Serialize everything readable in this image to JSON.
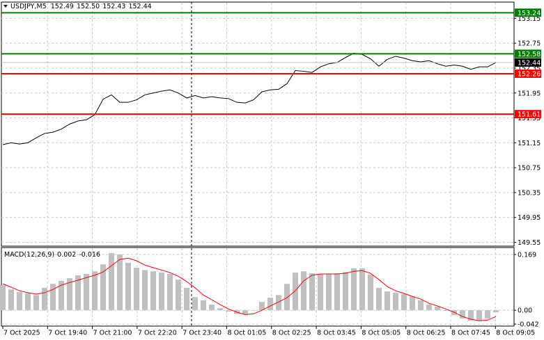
{
  "chart_data": [
    {
      "type": "line",
      "title": "USDJPY,M5",
      "ohlc": [
        "152.49",
        "152.50",
        "152.43",
        "152.44"
      ],
      "series": [
        {
          "color": "#000000",
          "values": [
            151.12,
            151.15,
            151.13,
            151.15,
            151.23,
            151.3,
            151.32,
            151.37,
            151.45,
            151.5,
            151.52,
            151.6,
            151.85,
            151.92,
            151.8,
            151.8,
            151.84,
            151.92,
            151.95,
            151.98,
            152.0,
            151.95,
            151.87,
            151.91,
            151.87,
            151.89,
            151.87,
            151.86,
            151.8,
            151.79,
            151.84,
            151.97,
            152.0,
            152.01,
            152.1,
            152.31,
            152.3,
            152.28,
            152.37,
            152.42,
            152.44,
            152.52,
            152.59,
            152.57,
            152.5,
            152.38,
            152.49,
            152.54,
            152.51,
            152.47,
            152.45,
            152.47,
            152.42,
            152.38,
            152.4,
            152.38,
            152.33,
            152.37,
            152.37,
            152.44
          ]
        }
      ],
      "ylim": [
        149.5,
        153.4
      ],
      "yticks": [
        153.15,
        152.75,
        152.35,
        151.95,
        151.55,
        151.15,
        150.75,
        150.35,
        149.95,
        149.55
      ],
      "grid": true,
      "levels": [
        {
          "value": 153.24,
          "color": "#008000"
        },
        {
          "value": 152.58,
          "color": "#008000"
        },
        {
          "value": 152.26,
          "color": "#ff0000"
        },
        {
          "value": 151.61,
          "color": "#ff0000"
        }
      ],
      "last_price": 152.44,
      "time_labels": [
        "7 Oct 2025",
        "7 Oct 19:40",
        "7 Oct 21:00",
        "7 Oct 22:20",
        "7 Oct 23:40",
        "8 Oct 01:05",
        "8 Oct 02:25",
        "8 Oct 03:45",
        "8 Oct 05:05",
        "8 Oct 06:25",
        "8 Oct 07:45",
        "8 Oct 09:05"
      ]
    },
    {
      "type": "macd",
      "title": "MACD(12,26,9)",
      "readings": [
        0.002,
        -0.016
      ],
      "series": [
        {
          "color": "#c0c0c0",
          "values": [
            0.076,
            0.063,
            0.055,
            0.051,
            0.046,
            0.068,
            0.08,
            0.089,
            0.097,
            0.106,
            0.11,
            0.118,
            0.139,
            0.173,
            0.169,
            0.144,
            0.129,
            0.122,
            0.118,
            0.114,
            0.11,
            0.093,
            0.068,
            0.04,
            0.03,
            0.017,
            0.006,
            -0.004,
            -0.011,
            -0.013,
            0.0,
            0.025,
            0.038,
            0.046,
            0.08,
            0.114,
            0.118,
            0.112,
            0.11,
            0.11,
            0.112,
            0.116,
            0.127,
            0.127,
            0.108,
            0.068,
            0.057,
            0.053,
            0.049,
            0.042,
            0.03,
            0.017,
            0.011,
            -0.002,
            -0.015,
            -0.025,
            -0.032,
            -0.032,
            -0.025,
            -0.006
          ]
        },
        {
          "color": "#ff0000",
          "values": [
            0.08,
            0.07,
            0.059,
            0.053,
            0.049,
            0.053,
            0.063,
            0.076,
            0.084,
            0.091,
            0.099,
            0.106,
            0.116,
            0.135,
            0.154,
            0.158,
            0.15,
            0.137,
            0.129,
            0.122,
            0.114,
            0.103,
            0.087,
            0.068,
            0.046,
            0.032,
            0.017,
            0.004,
            -0.006,
            -0.013,
            -0.011,
            0.0,
            0.013,
            0.025,
            0.038,
            0.059,
            0.089,
            0.106,
            0.11,
            0.11,
            0.11,
            0.112,
            0.118,
            0.12,
            0.112,
            0.093,
            0.072,
            0.059,
            0.051,
            0.042,
            0.034,
            0.021,
            0.013,
            0.004,
            -0.006,
            -0.019,
            -0.027,
            -0.032,
            -0.03,
            -0.019
          ]
        }
      ],
      "ylim": [
        -0.046,
        0.188
      ],
      "yticks": [
        0.169,
        {
          "value": 0,
          "label": "0.00"
        },
        -0.042
      ],
      "grid": true
    }
  ]
}
